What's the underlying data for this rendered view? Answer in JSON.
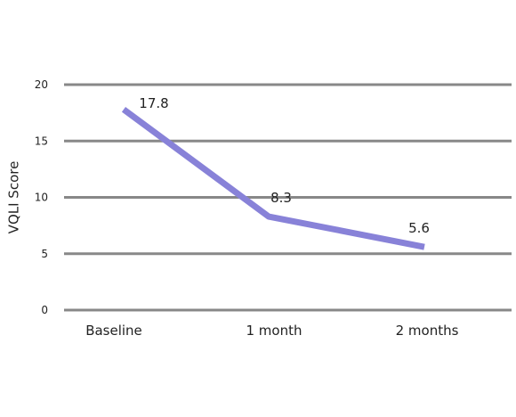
{
  "chart_data": {
    "type": "line",
    "title": "",
    "xlabel": "",
    "ylabel": "VQLI Score",
    "categories": [
      "Baseline",
      "1 month",
      "2 months"
    ],
    "series": [
      {
        "values": [
          17.8,
          8.3,
          5.6
        ],
        "data_labels": [
          "17.8",
          "8.3",
          "5.6"
        ]
      }
    ],
    "ylim": [
      0,
      20
    ],
    "yticks": [
      0,
      5,
      10,
      15,
      20
    ],
    "ytick_labels": [
      "0",
      "5",
      "10",
      "15",
      "20"
    ],
    "grid": true,
    "legend": "none",
    "colors": {
      "line": "#8882d8",
      "grid": "#888888"
    }
  }
}
